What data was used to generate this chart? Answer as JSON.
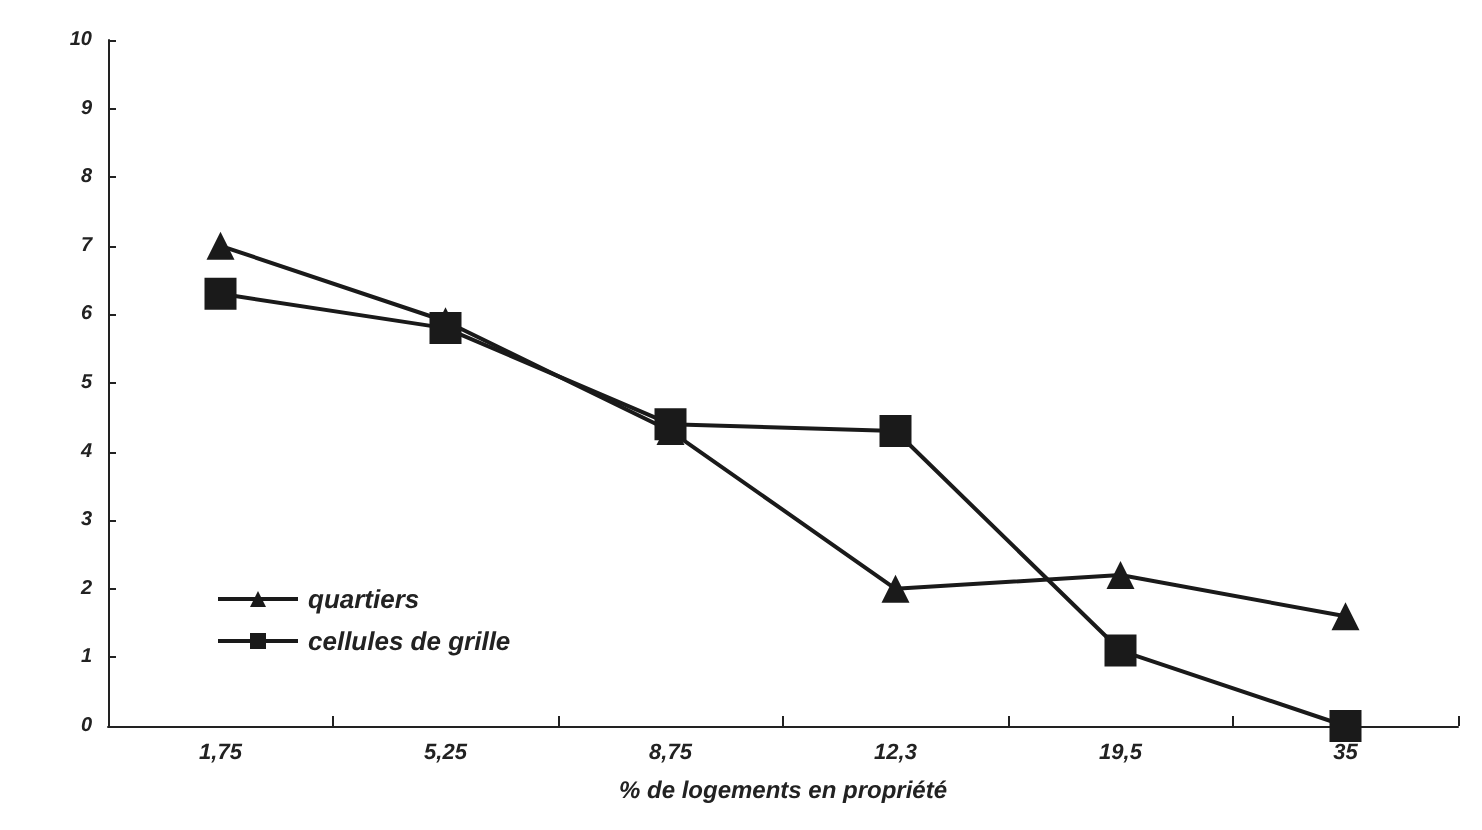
{
  "chart_data": {
    "type": "line",
    "xlabel": "% de logements en propriété",
    "categories": [
      "1,75",
      "5,25",
      "8,75",
      "12,3",
      "19,5",
      "35"
    ],
    "series": [
      {
        "name": "quartiers",
        "color": "#1a1a1a",
        "marker": "triangle",
        "values": [
          7.0,
          5.9,
          4.3,
          2.0,
          2.2,
          1.6
        ]
      },
      {
        "name": "cellules de grille",
        "color": "#1a1a1a",
        "marker": "square",
        "values": [
          6.3,
          5.8,
          4.4,
          4.3,
          1.1,
          0.0
        ]
      }
    ],
    "ylim": [
      0,
      10
    ],
    "yticks": [
      0,
      1,
      2,
      3,
      4,
      5,
      6,
      7,
      8,
      9,
      10
    ],
    "grid": false,
    "legend": "bottom left",
    "line_style": "solid"
  }
}
